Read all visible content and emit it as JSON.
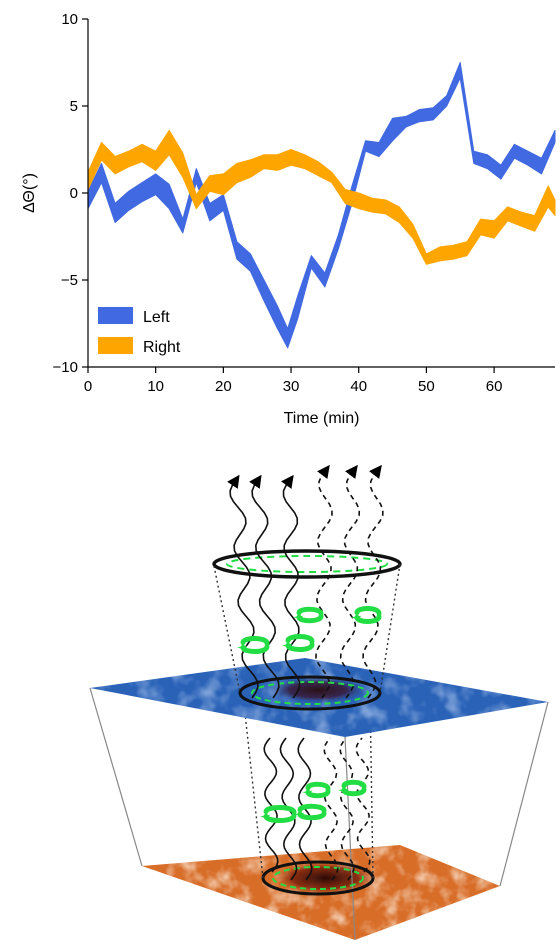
{
  "chart_data": {
    "type": "area",
    "title": "",
    "xlabel": "Time (min)",
    "ylabel": "ΔΘ(°)",
    "xlim": [
      0,
      69
    ],
    "ylim": [
      -10,
      10
    ],
    "xticks": [
      "0",
      "10",
      "20",
      "30",
      "40",
      "50",
      "60"
    ],
    "yticks": [
      "−10",
      "−5",
      "0",
      "5",
      "10"
    ],
    "grid": false,
    "legend": "bottom-left",
    "series": [
      {
        "name": "Left",
        "color": "#4169e1",
        "x": [
          0,
          2,
          4,
          6,
          8,
          10,
          12,
          14,
          16,
          18,
          20,
          22,
          24,
          26,
          28,
          29.5,
          31,
          33,
          35,
          37,
          39,
          41,
          43,
          45,
          47,
          49,
          51,
          53,
          55,
          57,
          59,
          61,
          63,
          65,
          67,
          69
        ],
        "lower": [
          -0.9,
          0.6,
          -1.7,
          -1.0,
          -0.5,
          -0.1,
          -0.9,
          -2.3,
          0.6,
          -1.6,
          -1.0,
          -3.8,
          -4.5,
          -6.2,
          -7.8,
          -8.9,
          -7.2,
          -4.3,
          -5.4,
          -3.2,
          -0.6,
          2.4,
          2.1,
          3.0,
          3.8,
          4.1,
          4.2,
          5.0,
          6.6,
          1.7,
          1.4,
          0.8,
          2.0,
          1.6,
          1.1,
          2.9
        ],
        "upper": [
          0.1,
          1.7,
          -0.6,
          0.1,
          0.6,
          1.1,
          0.5,
          -1.5,
          1.4,
          -0.6,
          -0.1,
          -2.8,
          -3.5,
          -5.0,
          -6.5,
          -7.8,
          -5.9,
          -3.6,
          -4.6,
          -2.4,
          0.4,
          3.0,
          2.9,
          4.3,
          4.4,
          4.8,
          4.9,
          5.6,
          7.5,
          2.4,
          2.2,
          1.6,
          2.8,
          2.4,
          2.0,
          3.6
        ]
      },
      {
        "name": "Right",
        "color": "#ffa500",
        "x": [
          0,
          2,
          4,
          6,
          8,
          10,
          12,
          14,
          16,
          18,
          20,
          22,
          24,
          26,
          28,
          30,
          32,
          34,
          36,
          38,
          40,
          42,
          44,
          46,
          48,
          50,
          52,
          54,
          56,
          58,
          60,
          62,
          64,
          66,
          68,
          69
        ],
        "lower": [
          0.2,
          1.9,
          1.1,
          1.5,
          1.8,
          1.3,
          2.2,
          0.9,
          -0.9,
          0.1,
          -0.1,
          0.6,
          0.9,
          1.4,
          1.3,
          1.6,
          1.4,
          1.0,
          0.6,
          -0.6,
          -0.9,
          -1.1,
          -1.2,
          -1.7,
          -2.6,
          -4.1,
          -3.9,
          -3.8,
          -3.6,
          -2.4,
          -2.6,
          -1.6,
          -1.9,
          -2.2,
          -0.8,
          -1.3
        ],
        "upper": [
          1.2,
          2.9,
          2.1,
          2.4,
          2.8,
          2.4,
          3.6,
          2.3,
          -0.1,
          1.0,
          1.1,
          1.7,
          1.9,
          2.2,
          2.2,
          2.5,
          2.2,
          1.8,
          1.2,
          0.2,
          0.0,
          -0.3,
          -0.4,
          -0.8,
          -1.8,
          -3.5,
          -3.1,
          -3.0,
          -2.8,
          -1.5,
          -1.6,
          -0.8,
          -1.1,
          -1.3,
          0.4,
          -0.4
        ]
      }
    ]
  },
  "diagram": {
    "colors": {
      "upper_plane": "#2a62b8",
      "lower_plane": "#d86d28",
      "swirl": "#22dd44"
    }
  }
}
